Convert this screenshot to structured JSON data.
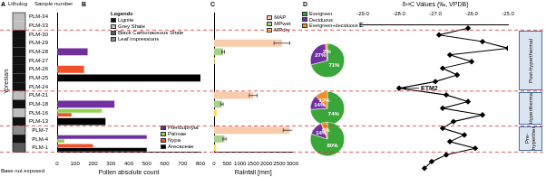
{
  "panel_labels": [
    "A",
    "B",
    "C",
    "D",
    "E"
  ],
  "lithology": {
    "title": "Litholog",
    "column_label": "Sample number",
    "stage": "Ypresian",
    "base": "Base not exposed",
    "legend_title": "Legends",
    "legend": [
      {
        "name": "Lignite",
        "color": "#111111"
      },
      {
        "name": "Grey Shale",
        "color": "#bfbfbf"
      },
      {
        "name": "Black Carbonaceous Shale",
        "color": "#595959"
      },
      {
        "name": "Leaf impressions",
        "color": "#8c8c8c"
      }
    ],
    "layers": [
      "Grey Shale",
      "Grey Shale",
      "Lignite",
      "Lignite",
      "Lignite",
      "Lignite",
      "Lignite",
      "Lignite",
      "Lignite",
      "Grey Shale",
      "Lignite",
      "Grey Shale",
      "Lignite",
      "Leaf impressions",
      "Lignite",
      "Black Carbonaceous Shale"
    ]
  },
  "phases": [
    {
      "label": "Post-hyperthermal",
      "from": "PLM-30",
      "to": "PLM-24"
    },
    {
      "label": "Hyperthermal",
      "from": "PLM-21",
      "to": "PLM-13"
    },
    {
      "label": "Pre-hyperthermal",
      "from": "PLM-7",
      "to": "PLM-1"
    }
  ],
  "chart_data": [
    {
      "type": "bar",
      "orientation": "horizontal",
      "xlabel": "Pollen absolute count",
      "categories": [
        "PLM-34",
        "PLM-33",
        "PLM-30",
        "PLM-29",
        "PLM-28",
        "PLM-27",
        "PLM-26",
        "PLM-25",
        "PLM-24",
        "PLM-21",
        "PLM-18",
        "PLM-16",
        "PLM-13",
        "PLM-7",
        "PLM-4",
        "PLM-1"
      ],
      "series": [
        {
          "name": "Pteridophyta",
          "color": "#7030a0",
          "values": [
            null,
            null,
            null,
            null,
            170,
            null,
            null,
            null,
            null,
            null,
            320,
            null,
            null,
            null,
            500,
            null
          ]
        },
        {
          "name": "Palmae",
          "color": "#92d050",
          "values": [
            null,
            null,
            null,
            null,
            null,
            null,
            null,
            null,
            null,
            null,
            null,
            250,
            null,
            null,
            40,
            null
          ]
        },
        {
          "name": "Nypa",
          "color": "#f0502a",
          "values": [
            null,
            null,
            null,
            null,
            null,
            null,
            150,
            null,
            null,
            null,
            null,
            80,
            null,
            null,
            null,
            200
          ]
        },
        {
          "name": "Arecaceae",
          "color": "#000000",
          "values": [
            null,
            null,
            null,
            null,
            null,
            null,
            null,
            800,
            null,
            null,
            null,
            null,
            270,
            null,
            null,
            500
          ]
        }
      ],
      "xlim": [
        0,
        800
      ],
      "xticks": [
        0,
        100,
        200,
        300,
        400,
        500,
        600,
        700,
        800
      ],
      "grid": false,
      "legend": "lower right"
    },
    {
      "type": "bar",
      "orientation": "horizontal",
      "xlabel": "Rainfall [mm]",
      "categories": [
        "PLM-34",
        "PLM-33",
        "PLM-30",
        "PLM-29",
        "PLM-28",
        "PLM-27",
        "PLM-26",
        "PLM-25",
        "PLM-24",
        "PLM-21",
        "PLM-18",
        "PLM-16",
        "PLM-13",
        "PLM-7",
        "PLM-4",
        "PLM-1"
      ],
      "series": [
        {
          "name": "MAP",
          "color": "#f8cbad",
          "values": [
            null,
            null,
            null,
            2600,
            null,
            null,
            null,
            null,
            null,
            1500,
            null,
            null,
            null,
            2900,
            null,
            null
          ],
          "errors": [
            null,
            null,
            null,
            300,
            null,
            null,
            null,
            null,
            null,
            150,
            null,
            null,
            null,
            250,
            null,
            null
          ]
        },
        {
          "name": "MPwet",
          "color": "#a9d18e",
          "values": [
            null,
            null,
            null,
            null,
            350,
            null,
            null,
            null,
            null,
            null,
            300,
            null,
            null,
            null,
            400,
            null
          ],
          "errors": [
            null,
            null,
            null,
            null,
            50,
            null,
            null,
            null,
            null,
            null,
            50,
            null,
            null,
            null,
            60,
            null
          ]
        },
        {
          "name": "MPdry",
          "color": "#ffd966",
          "values": [
            null,
            null,
            null,
            null,
            null,
            30,
            null,
            null,
            null,
            null,
            null,
            100,
            null,
            null,
            null,
            80
          ]
        }
      ],
      "xlim": [
        0,
        3000
      ],
      "xticks": [
        0,
        500,
        1000,
        1500,
        2000,
        2500,
        3000
      ],
      "tick_labels": "x",
      "grid": false,
      "legend": "upper right"
    },
    {
      "type": "pie",
      "categories": [
        "Evergreen",
        "Deciduous",
        "Evergreen+deciduous"
      ],
      "values": [
        71,
        27,
        2
      ],
      "colors": [
        "#3aa63a",
        "#7030a0",
        "#f0902a"
      ],
      "value_labels": [
        "71%",
        "27%",
        "2%"
      ],
      "data_labels": true
    },
    {
      "type": "pie",
      "categories": [
        "Evergreen",
        "Deciduous",
        "Evergreen+deciduous"
      ],
      "values": [
        74,
        14,
        12
      ],
      "colors": [
        "#3aa63a",
        "#7030a0",
        "#f0902a"
      ],
      "value_labels": [
        "74%",
        "14%",
        "12%"
      ],
      "data_labels": true
    },
    {
      "type": "pie",
      "categories": [
        "Evergreen",
        "Deciduous",
        "Evergreen+deciduous"
      ],
      "values": [
        80,
        14,
        6
      ],
      "colors": [
        "#3aa63a",
        "#7030a0",
        "#f0902a"
      ],
      "value_labels": [
        "80%",
        "14%",
        "6%"
      ],
      "data_labels": true
    },
    {
      "type": "line",
      "orientation": "horizontal",
      "xlabel": "δ¹³C Values (‰, VPDB)",
      "categories": [
        null,
        null,
        null,
        null,
        null,
        null,
        null,
        null,
        null,
        null,
        null,
        null,
        null,
        null,
        null,
        null,
        null,
        null,
        null,
        null,
        null,
        null
      ],
      "values": [
        -26.1,
        -26.9,
        -25.7,
        -25.0,
        -26.6,
        -26.0,
        -26.8,
        -26.4,
        -27.0,
        -28.0,
        -26.7,
        -26.1,
        -26.8,
        -25.7,
        -26.5,
        -26.8,
        -26.2,
        -26.6,
        -25.9,
        -26.7,
        -27.1,
        -27.3
      ],
      "color": "#000000",
      "marker": "diamond",
      "xlim": [
        -29,
        -25
      ],
      "xticks": [
        {
          "value": -29,
          "label": "-29.0"
        },
        {
          "value": -28,
          "label": "-28.0"
        },
        {
          "value": -27,
          "label": "-27.0"
        },
        {
          "value": -26,
          "label": "-26.0"
        },
        {
          "value": -25,
          "label": "-25.0"
        }
      ],
      "annotations": [
        "ETM2"
      ],
      "grid": false
    }
  ]
}
